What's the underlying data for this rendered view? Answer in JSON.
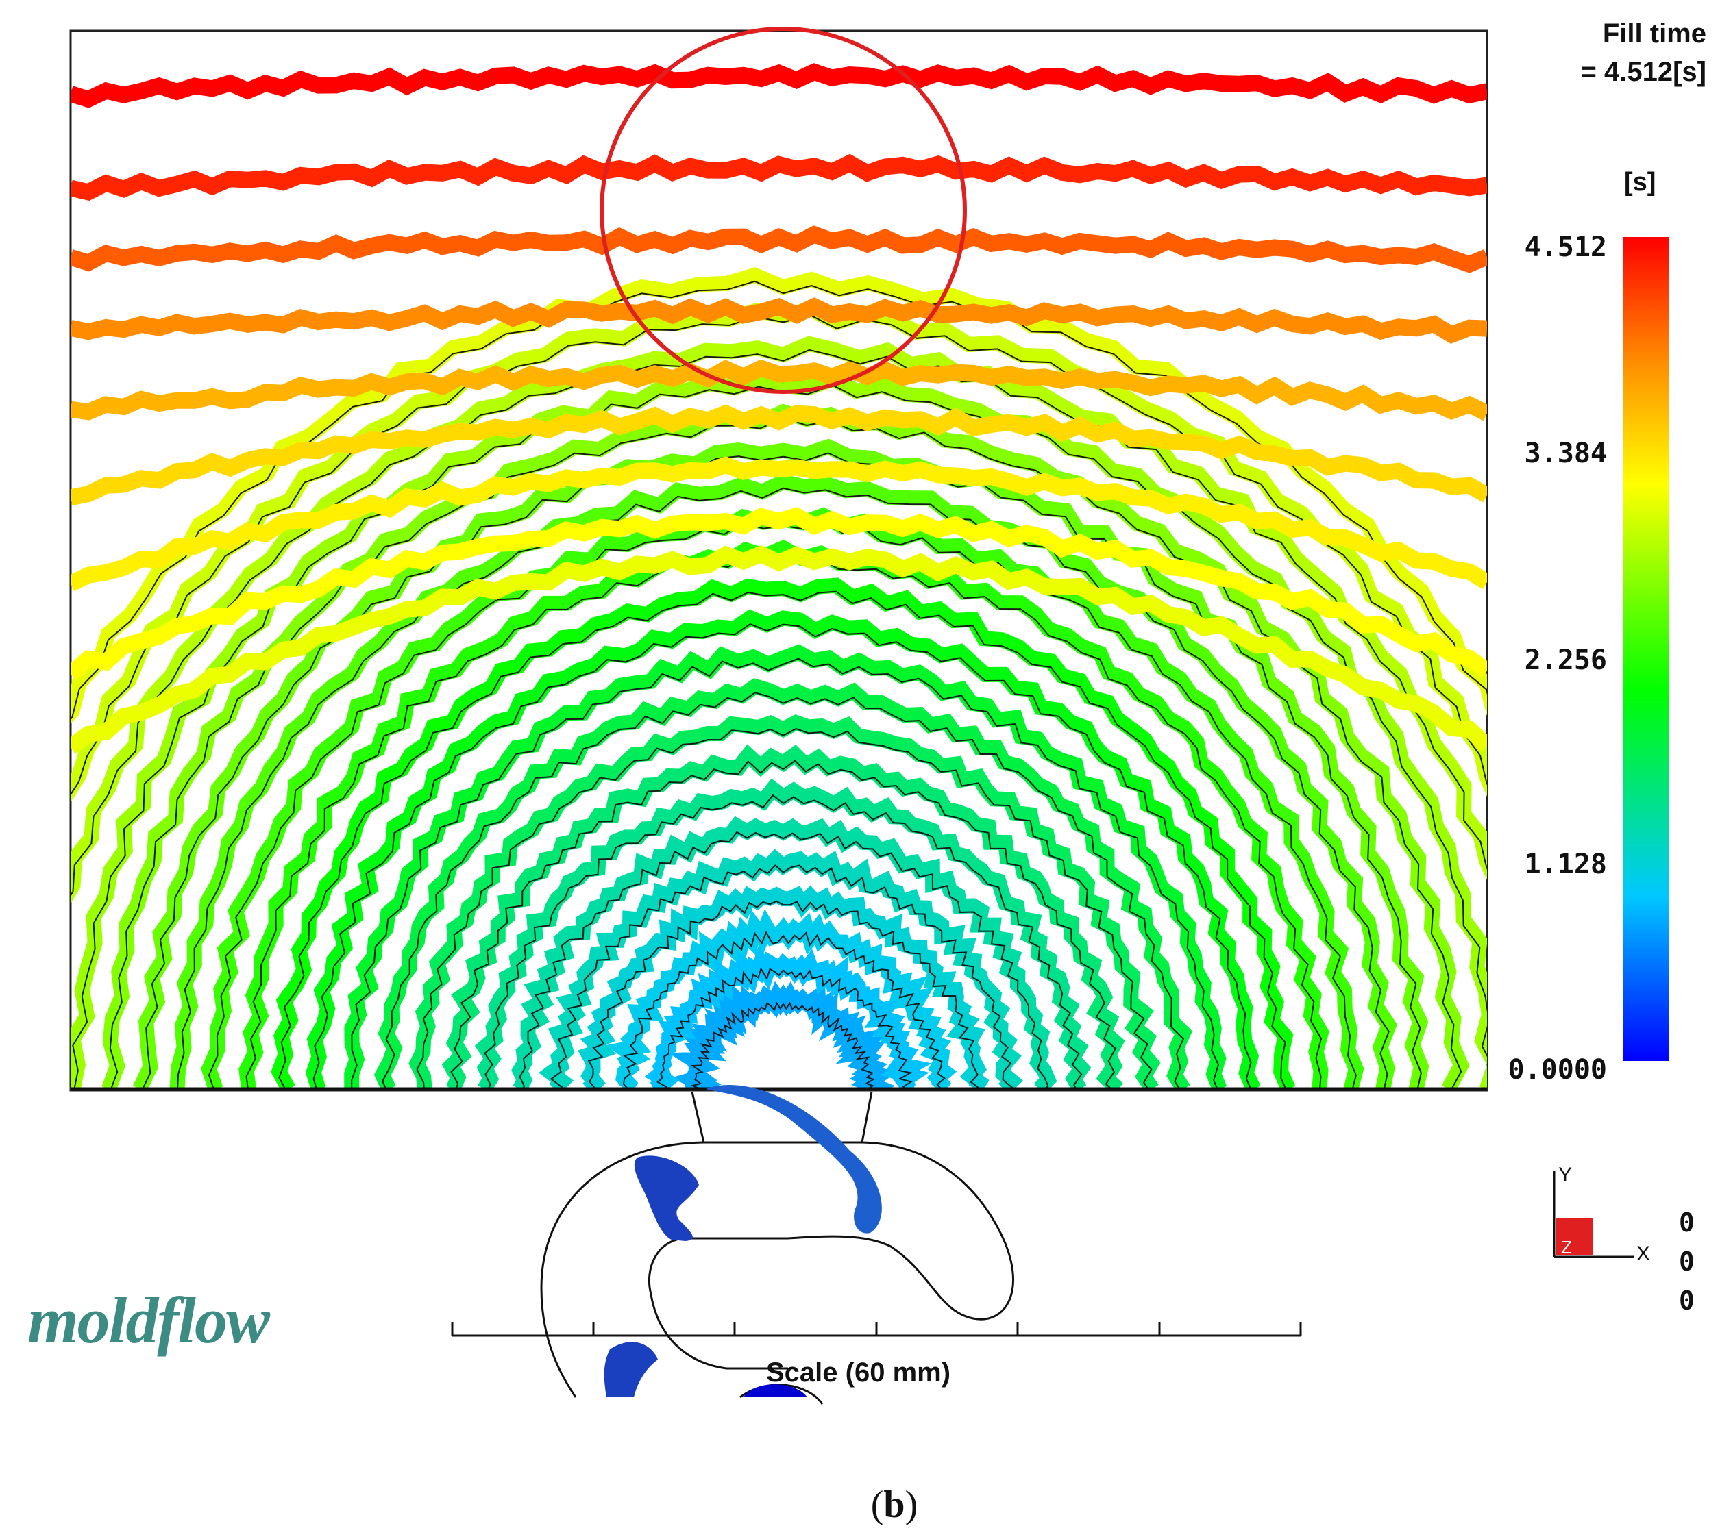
{
  "result": {
    "title_line1": "Fill time",
    "title_line2": "= 4.512[s]"
  },
  "legend": {
    "unit": "[s]",
    "max_label": "4.512",
    "ticks": [
      "4.512",
      "3.384",
      "2.256",
      "1.128",
      "0.0000"
    ],
    "colors": [
      "#0000ff",
      "#00c8ff",
      "#00ff00",
      "#ffff00",
      "#ff8c00",
      "#ff0000"
    ]
  },
  "scale_bar": {
    "label": "Scale (60 mm)"
  },
  "axes_triad": {
    "y_label": "Y",
    "x_label": "X",
    "z_label": "Z",
    "values": [
      "0",
      "0",
      "0"
    ]
  },
  "logo": {
    "text": "moldflow"
  },
  "caption": {
    "letter": "b",
    "text": "(b)"
  },
  "colors": {
    "highlight_circle": "#e02020",
    "triad_box": "#e02020",
    "logo": "#3c8c84",
    "outline": "#000000"
  }
}
